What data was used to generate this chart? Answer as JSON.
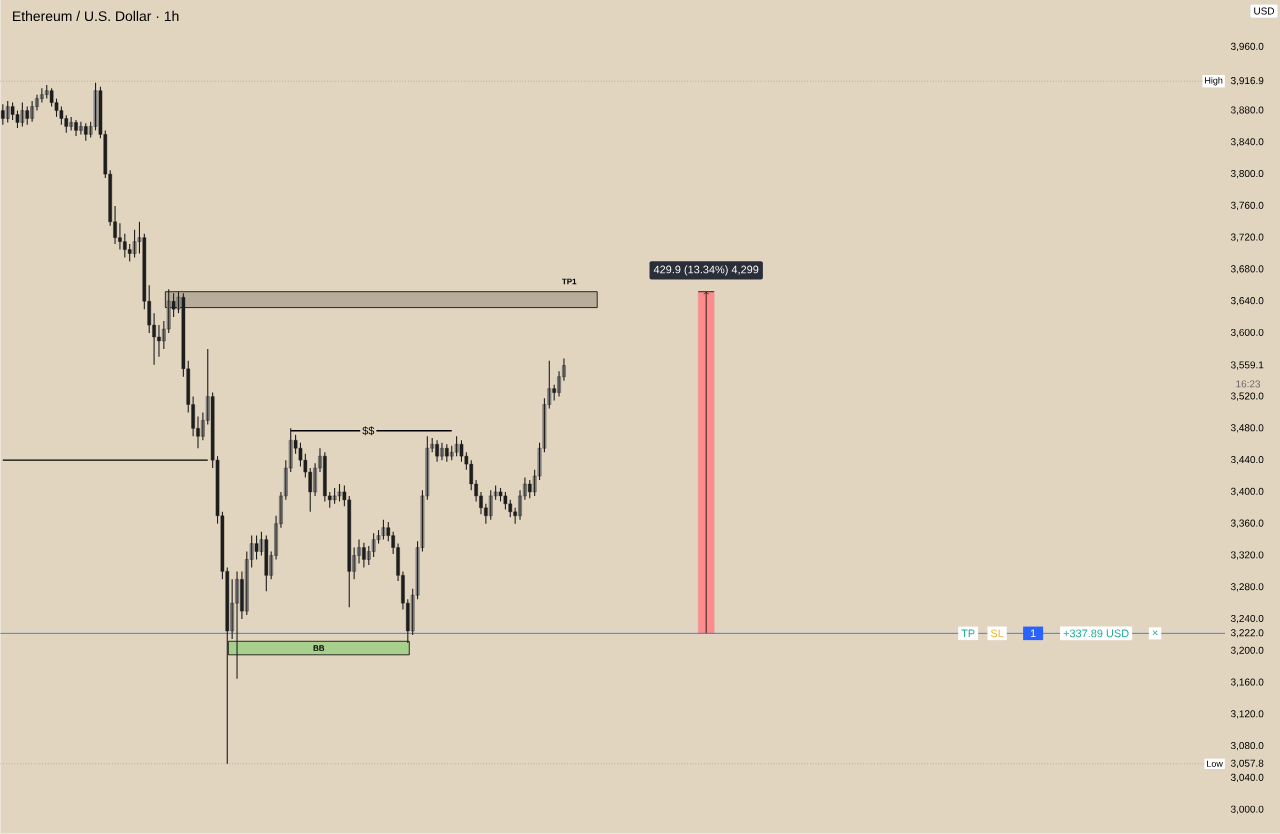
{
  "chart_data": {
    "type": "candlestick",
    "title": "Ethereum / U.S. Dollar · 1h",
    "color": "#1e1e1e",
    "categories": [
      null,
      null,
      null,
      null,
      null,
      null,
      null,
      null,
      null,
      null,
      null,
      null,
      null,
      null,
      null,
      null,
      null,
      null,
      null,
      null,
      null,
      null,
      null,
      null,
      null,
      null,
      null,
      null,
      null,
      null,
      null,
      null,
      null,
      null,
      null,
      null,
      null,
      null,
      null,
      null,
      null,
      null,
      null,
      null,
      null,
      null,
      null,
      null,
      null,
      null,
      null,
      null,
      null,
      null,
      null,
      null,
      null,
      null,
      null,
      null,
      null,
      null,
      null,
      null,
      null,
      null,
      null,
      null,
      null,
      null,
      null,
      null,
      null,
      null,
      null,
      null,
      null,
      null,
      null,
      null,
      null,
      null,
      null,
      null,
      null,
      null,
      null,
      null,
      null,
      null,
      null,
      null,
      null,
      null,
      null,
      null,
      null,
      null,
      null,
      null,
      null,
      null,
      null,
      null,
      null,
      null,
      null,
      null,
      null,
      null,
      null,
      null,
      null,
      null,
      null,
      null,
      null,
      null,
      null,
      null,
      null,
      null,
      null,
      null,
      null,
      null,
      null,
      null,
      null,
      null,
      null,
      null,
      null,
      null,
      null,
      null,
      null,
      null,
      null,
      null,
      null,
      null,
      null,
      null,
      null,
      null,
      null,
      null,
      null,
      null,
      null,
      null,
      null,
      null,
      null,
      null,
      null,
      null,
      null,
      null,
      null,
      null,
      null,
      null,
      null,
      null,
      null,
      null,
      null,
      null,
      null,
      null,
      null,
      null,
      null,
      null,
      null,
      null,
      null,
      null,
      null,
      null,
      null,
      null,
      null,
      null,
      null,
      null,
      null,
      null,
      null,
      null,
      null,
      null,
      null,
      null,
      null,
      null,
      null,
      null,
      null,
      null,
      null,
      null,
      null,
      null,
      null,
      null,
      null,
      null,
      null,
      null,
      null,
      null,
      null,
      null,
      null,
      null,
      null,
      null,
      null,
      null,
      null,
      null,
      null,
      null,
      null,
      null,
      null,
      null,
      null,
      null,
      null,
      null,
      null,
      null,
      null,
      null,
      null,
      null,
      null,
      null,
      null,
      null,
      null,
      null,
      null,
      null,
      null,
      null,
      null
    ],
    "ohlc": [
      [
        3880,
        3888,
        3862,
        3870
      ],
      [
        3870,
        3892,
        3865,
        3885
      ],
      [
        3885,
        3890,
        3868,
        3875
      ],
      [
        3875,
        3880,
        3858,
        3865
      ],
      [
        3865,
        3890,
        3860,
        3880
      ],
      [
        3880,
        3885,
        3862,
        3870
      ],
      [
        3870,
        3892,
        3866,
        3885
      ],
      [
        3885,
        3900,
        3880,
        3895
      ],
      [
        3895,
        3908,
        3890,
        3900
      ],
      [
        3900,
        3912,
        3895,
        3905
      ],
      [
        3905,
        3908,
        3885,
        3890
      ],
      [
        3890,
        3895,
        3872,
        3880
      ],
      [
        3880,
        3885,
        3862,
        3870
      ],
      [
        3870,
        3874,
        3852,
        3860
      ],
      [
        3860,
        3872,
        3855,
        3865
      ],
      [
        3865,
        3868,
        3848,
        3855
      ],
      [
        3855,
        3866,
        3850,
        3860
      ],
      [
        3860,
        3864,
        3842,
        3850
      ],
      [
        3850,
        3866,
        3846,
        3860
      ],
      [
        3860,
        3915,
        3855,
        3905
      ],
      [
        3905,
        3910,
        3845,
        3850
      ],
      [
        3850,
        3855,
        3795,
        3800
      ],
      [
        3800,
        3805,
        3735,
        3740
      ],
      [
        3740,
        3760,
        3712,
        3720
      ],
      [
        3720,
        3738,
        3705,
        3715
      ],
      [
        3715,
        3725,
        3695,
        3705
      ],
      [
        3705,
        3712,
        3690,
        3700
      ],
      [
        3700,
        3730,
        3695,
        3715
      ],
      [
        3715,
        3740,
        3700,
        3720
      ],
      [
        3720,
        3725,
        3630,
        3640
      ],
      [
        3640,
        3660,
        3600,
        3610
      ],
      [
        3610,
        3625,
        3560,
        3595
      ],
      [
        3595,
        3610,
        3570,
        3590
      ],
      [
        3590,
        3615,
        3580,
        3605
      ],
      [
        3605,
        3655,
        3600,
        3640
      ],
      [
        3640,
        3650,
        3620,
        3630
      ],
      [
        3630,
        3652,
        3625,
        3645
      ],
      [
        3645,
        3650,
        3545,
        3555
      ],
      [
        3555,
        3565,
        3500,
        3510
      ],
      [
        3510,
        3520,
        3470,
        3480
      ],
      [
        3480,
        3495,
        3455,
        3470
      ],
      [
        3470,
        3500,
        3465,
        3490
      ],
      [
        3490,
        3580,
        3485,
        3520
      ],
      [
        3520,
        3525,
        3430,
        3440
      ],
      [
        3440,
        3445,
        3360,
        3370
      ],
      [
        3370,
        3375,
        3290,
        3300
      ],
      [
        3300,
        3305,
        3058,
        3225
      ],
      [
        3225,
        3290,
        3215,
        3260
      ],
      [
        3260,
        3300,
        3165,
        3290
      ],
      [
        3290,
        3300,
        3240,
        3250
      ],
      [
        3250,
        3325,
        3245,
        3315
      ],
      [
        3315,
        3345,
        3305,
        3335
      ],
      [
        3335,
        3345,
        3315,
        3325
      ],
      [
        3325,
        3350,
        3320,
        3340
      ],
      [
        3340,
        3345,
        3275,
        3295
      ],
      [
        3295,
        3325,
        3290,
        3320
      ],
      [
        3320,
        3370,
        3315,
        3360
      ],
      [
        3360,
        3400,
        3355,
        3395
      ],
      [
        3395,
        3440,
        3390,
        3430
      ],
      [
        3430,
        3480,
        3425,
        3465
      ],
      [
        3465,
        3472,
        3448,
        3455
      ],
      [
        3455,
        3462,
        3432,
        3440
      ],
      [
        3440,
        3448,
        3418,
        3425
      ],
      [
        3425,
        3430,
        3375,
        3400
      ],
      [
        3400,
        3436,
        3395,
        3430
      ],
      [
        3430,
        3455,
        3425,
        3445
      ],
      [
        3445,
        3450,
        3388,
        3395
      ],
      [
        3395,
        3400,
        3380,
        3390
      ],
      [
        3390,
        3405,
        3385,
        3395
      ],
      [
        3395,
        3410,
        3388,
        3400
      ],
      [
        3400,
        3408,
        3382,
        3390
      ],
      [
        3390,
        3395,
        3255,
        3300
      ],
      [
        3300,
        3330,
        3290,
        3320
      ],
      [
        3320,
        3340,
        3310,
        3330
      ],
      [
        3330,
        3336,
        3305,
        3315
      ],
      [
        3315,
        3332,
        3308,
        3325
      ],
      [
        3325,
        3348,
        3318,
        3340
      ],
      [
        3340,
        3352,
        3335,
        3345
      ],
      [
        3345,
        3365,
        3340,
        3355
      ],
      [
        3355,
        3362,
        3338,
        3345
      ],
      [
        3345,
        3350,
        3322,
        3330
      ],
      [
        3330,
        3335,
        3288,
        3295
      ],
      [
        3295,
        3300,
        3252,
        3260
      ],
      [
        3260,
        3265,
        3210,
        3225
      ],
      [
        3225,
        3278,
        3220,
        3270
      ],
      [
        3270,
        3338,
        3265,
        3330
      ],
      [
        3330,
        3402,
        3325,
        3395
      ],
      [
        3395,
        3470,
        3390,
        3455
      ],
      [
        3455,
        3468,
        3450,
        3460
      ],
      [
        3460,
        3465,
        3438,
        3445
      ],
      [
        3445,
        3462,
        3440,
        3455
      ],
      [
        3455,
        3460,
        3438,
        3445
      ],
      [
        3445,
        3458,
        3440,
        3450
      ],
      [
        3450,
        3470,
        3445,
        3460
      ],
      [
        3460,
        3465,
        3438,
        3445
      ],
      [
        3445,
        3450,
        3428,
        3435
      ],
      [
        3435,
        3440,
        3402,
        3410
      ],
      [
        3410,
        3415,
        3388,
        3395
      ],
      [
        3395,
        3400,
        3372,
        3380
      ],
      [
        3380,
        3385,
        3360,
        3370
      ],
      [
        3370,
        3402,
        3365,
        3395
      ],
      [
        3395,
        3408,
        3390,
        3400
      ],
      [
        3400,
        3405,
        3388,
        3395
      ],
      [
        3395,
        3400,
        3378,
        3385
      ],
      [
        3385,
        3390,
        3368,
        3375
      ],
      [
        3375,
        3380,
        3360,
        3370
      ],
      [
        3370,
        3402,
        3365,
        3395
      ],
      [
        3395,
        3418,
        3390,
        3410
      ],
      [
        3410,
        3415,
        3392,
        3400
      ],
      [
        3400,
        3428,
        3395,
        3420
      ],
      [
        3420,
        3462,
        3415,
        3455
      ],
      [
        3455,
        3518,
        3450,
        3510
      ],
      [
        3510,
        3565,
        3505,
        3530
      ],
      [
        3530,
        3535,
        3515,
        3525
      ],
      [
        3525,
        3552,
        3520,
        3545
      ],
      [
        3545,
        3568,
        3540,
        3559.1
      ],
      null,
      null,
      null,
      null,
      null,
      null,
      null,
      null,
      null,
      null,
      null,
      null,
      null,
      null,
      null,
      null,
      null,
      null,
      null,
      null,
      null,
      null,
      null,
      null,
      null,
      null,
      null,
      null,
      null,
      null,
      null,
      null,
      null,
      null,
      null,
      null,
      null,
      null,
      null,
      null,
      null,
      null,
      null,
      null,
      null,
      null,
      null,
      null,
      null,
      null,
      null,
      null,
      null,
      null,
      null,
      null,
      null,
      null,
      null,
      null,
      null,
      null,
      null,
      null,
      null,
      null,
      null,
      null,
      null,
      null,
      null,
      null,
      null,
      null,
      null,
      null,
      null,
      null,
      null,
      null,
      null,
      null,
      null,
      null,
      null,
      null,
      null,
      null,
      null,
      null,
      null,
      null,
      null,
      null,
      null,
      null,
      null,
      null,
      null,
      null,
      null,
      null,
      null,
      null,
      null,
      null,
      null,
      null,
      null,
      null,
      null,
      null,
      null,
      null,
      null,
      null,
      null,
      null,
      null,
      null,
      null,
      null,
      null,
      null,
      null,
      null,
      null,
      null,
      null,
      null,
      null,
      null,
      null,
      null,
      null
    ],
    "series": [
      {
        "type": "line",
        "color": "#000000",
        "values": [
          3440,
          3440,
          3440,
          3440,
          3440,
          3440,
          3440,
          3440,
          3440,
          3440,
          3440,
          3440,
          3440,
          3440,
          3440,
          3440,
          3440,
          3440,
          3440,
          3440,
          3440,
          3440,
          3440,
          3440,
          3440,
          3440,
          3440,
          3440,
          3440,
          3440,
          3440,
          3440,
          3440,
          3440,
          3440,
          3440,
          3440,
          3440,
          3440,
          3440,
          3440,
          3440,
          3440,
          null,
          null,
          null,
          null,
          null,
          null,
          null,
          null,
          null,
          null,
          null,
          null,
          null,
          null,
          null,
          null,
          null,
          null,
          null,
          null,
          null,
          null,
          null,
          null,
          null,
          null,
          null,
          null,
          null,
          null,
          null,
          null,
          null,
          null,
          null,
          null,
          null,
          null,
          null,
          null,
          null,
          null,
          null,
          null,
          null,
          null,
          null,
          null,
          null,
          null,
          null,
          null,
          null,
          null,
          null,
          null,
          null,
          null,
          null,
          null,
          null,
          null,
          null,
          null,
          null,
          null,
          null,
          null,
          null,
          null,
          null,
          null,
          null,
          null,
          null,
          null,
          null,
          null,
          null,
          null,
          null,
          null,
          null,
          null,
          null,
          null,
          null,
          null,
          null,
          null,
          null,
          null,
          null,
          null,
          null,
          null,
          null,
          null,
          null,
          null,
          null,
          null,
          null,
          null,
          null,
          null,
          null,
          null,
          null,
          null,
          null,
          null,
          null,
          null,
          null,
          null,
          null,
          null,
          null,
          null,
          null,
          null,
          null,
          null,
          null,
          null,
          null,
          null,
          null,
          null,
          null,
          null,
          null,
          null,
          null,
          null,
          null,
          null,
          null,
          null,
          null,
          null,
          null,
          null,
          null,
          null,
          null,
          null,
          null,
          null,
          null,
          null,
          null,
          null,
          null,
          null,
          null,
          null,
          null,
          null,
          null,
          null,
          null,
          null,
          null,
          null,
          null,
          null,
          null,
          null,
          null,
          null,
          null,
          null,
          null,
          null,
          null,
          null,
          null,
          null,
          null,
          null,
          null,
          null,
          null,
          null,
          null,
          null,
          null,
          null,
          null,
          null,
          null,
          null,
          null,
          null,
          null,
          null,
          null,
          null,
          null,
          null,
          null,
          null,
          null,
          null,
          null,
          null
        ]
      },
      {
        "type": "line",
        "color": "#000000",
        "values": [
          null,
          null,
          null,
          null,
          null,
          null,
          null,
          null,
          null,
          null,
          null,
          null,
          null,
          null,
          null,
          null,
          null,
          null,
          null,
          null,
          null,
          null,
          null,
          null,
          null,
          null,
          null,
          null,
          null,
          null,
          null,
          null,
          null,
          null,
          null,
          null,
          null,
          null,
          null,
          null,
          null,
          null,
          null,
          null,
          null,
          null,
          null,
          null,
          null,
          null,
          null,
          null,
          null,
          null,
          null,
          null,
          null,
          null,
          null,
          3477,
          3477,
          3477,
          3477,
          3477,
          3477,
          3477,
          3477,
          3477,
          3477,
          3477,
          3477,
          3477,
          3477,
          3477,
          3477,
          3477,
          3477,
          3477,
          3477,
          3477,
          3477,
          3477,
          3477,
          3477,
          3477,
          3477,
          3477,
          3477,
          3477,
          3477,
          3477,
          3477,
          3477,
          null,
          null,
          null,
          null,
          null,
          null,
          null,
          null,
          null,
          null,
          null,
          null,
          null,
          null,
          null,
          null,
          null,
          null,
          null,
          null,
          null,
          null,
          null,
          null,
          null,
          null,
          null,
          null,
          null,
          null,
          null,
          null,
          null,
          null,
          null,
          null,
          null,
          null,
          null,
          null,
          null,
          null,
          null,
          null,
          null,
          null,
          null,
          null,
          null,
          null,
          null,
          null,
          null,
          null,
          null,
          null,
          null,
          null,
          null,
          null,
          null,
          null,
          null,
          null,
          null,
          null,
          null,
          null,
          null,
          null,
          null,
          null,
          null,
          null,
          null,
          null,
          null,
          null,
          null,
          null,
          null,
          null,
          null,
          null,
          null,
          null,
          null,
          null,
          null,
          null,
          null,
          null,
          null,
          null,
          null,
          null,
          null,
          null,
          null,
          null,
          null,
          null,
          null,
          null,
          null,
          null,
          null,
          null,
          null,
          null,
          null,
          null,
          null,
          null,
          null,
          null,
          null,
          null,
          null,
          null,
          null,
          null,
          null,
          null,
          null,
          null,
          null,
          null,
          null,
          null,
          null,
          null,
          null,
          null,
          null,
          null,
          null,
          null,
          null,
          null,
          null,
          null,
          null,
          null,
          null,
          null,
          null,
          null,
          null,
          null,
          null,
          null,
          null,
          null,
          null,
          null,
          null,
          null
        ]
      }
    ],
    "ylim": [
      3000,
      3960
    ],
    "yticks": [
      {
        "value": 3000,
        "label": "3,000.0"
      },
      {
        "value": 3040,
        "label": "3,040.0"
      },
      {
        "value": 3057.8,
        "label": "3,057.8"
      },
      {
        "value": 3080,
        "label": "3,080.0"
      },
      {
        "value": 3120,
        "label": "3,120.0"
      },
      {
        "value": 3160,
        "label": "3,160.0"
      },
      {
        "value": 3200,
        "label": "3,200.0"
      },
      {
        "value": 3222.0,
        "label": "3,222.0"
      },
      {
        "value": 3240,
        "label": "3,240.0"
      },
      {
        "value": 3280,
        "label": "3,280.0"
      },
      {
        "value": 3320,
        "label": "3,320.0"
      },
      {
        "value": 3360,
        "label": "3,360.0"
      },
      {
        "value": 3400,
        "label": "3,400.0"
      },
      {
        "value": 3440,
        "label": "3,440.0"
      },
      {
        "value": 3480,
        "label": "3,480.0"
      },
      {
        "value": 3520,
        "label": "3,520.0"
      },
      {
        "value": 3559.1,
        "label": "3,559.1"
      },
      {
        "value": 3600,
        "label": "3,600.0"
      },
      {
        "value": 3640,
        "label": "3,640.0"
      },
      {
        "value": 3680,
        "label": "3,680.0"
      },
      {
        "value": 3720,
        "label": "3,720.0"
      },
      {
        "value": 3760,
        "label": "3,760.0"
      },
      {
        "value": 3800,
        "label": "3,800.0"
      },
      {
        "value": 3840,
        "label": "3,840.0"
      },
      {
        "value": 3880,
        "label": "3,880.0"
      },
      {
        "value": 3916.9,
        "label": "3,916.9"
      },
      {
        "value": 3960,
        "label": "3,960.0"
      }
    ],
    "tick_labels": "y",
    "ref_lines": [
      {
        "axis": "y",
        "value": 3916.9,
        "label": "High",
        "color": "#9a9a9a",
        "line_style": "dotted"
      },
      {
        "axis": "y",
        "value": 3057.8,
        "label": "Low",
        "color": "#9a9a9a",
        "line_style": "dotted"
      },
      {
        "axis": "y",
        "value": 3222.0,
        "color": "#2962ff",
        "line_style": "solid"
      }
    ],
    "bands": [
      {
        "axis": "y",
        "from": 3632,
        "to": 3652,
        "label": "TP1",
        "color": "#b8ad9b"
      },
      {
        "axis": "y",
        "from": 3195,
        "to": 3212,
        "label": "BB",
        "color": "#a8d08d"
      }
    ],
    "annotations": [
      {
        "text": "$$",
        "y": 3477
      },
      {
        "text": "429.9 (13.34%) 4,299",
        "y": 3652
      },
      {
        "text": "TP",
        "y": 3222.0
      },
      {
        "text": "SL",
        "y": 3222.0
      },
      {
        "text": "1",
        "y": 3222.0
      },
      {
        "text": "+337.89 USD",
        "y": 3222.0
      },
      {
        "text": "×",
        "y": 3222.0
      },
      "16:23",
      "USD"
    ]
  }
}
